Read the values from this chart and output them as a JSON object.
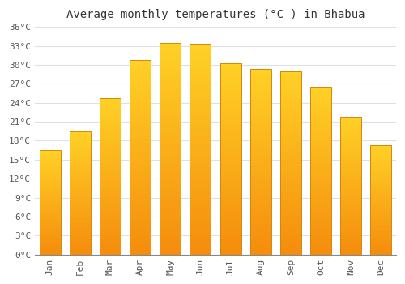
{
  "title": "Average monthly temperatures (°C ) in Bhabua",
  "months": [
    "Jan",
    "Feb",
    "Mar",
    "Apr",
    "May",
    "Jun",
    "Jul",
    "Aug",
    "Sep",
    "Oct",
    "Nov",
    "Dec"
  ],
  "values": [
    16.5,
    19.5,
    24.8,
    30.8,
    33.5,
    33.3,
    30.3,
    29.3,
    29.0,
    26.5,
    21.8,
    17.3
  ],
  "bar_color_center": "#FFCC00",
  "bar_color_edge": "#F5A800",
  "bar_color_bottom": "#F08000",
  "background_color": "#ffffff",
  "grid_color": "#e0e0e0",
  "text_color": "#555555",
  "title_color": "#333333",
  "ytick_step": 3,
  "ymax": 36,
  "ymin": 0,
  "font_family": "monospace",
  "title_fontsize": 10,
  "tick_fontsize": 8
}
